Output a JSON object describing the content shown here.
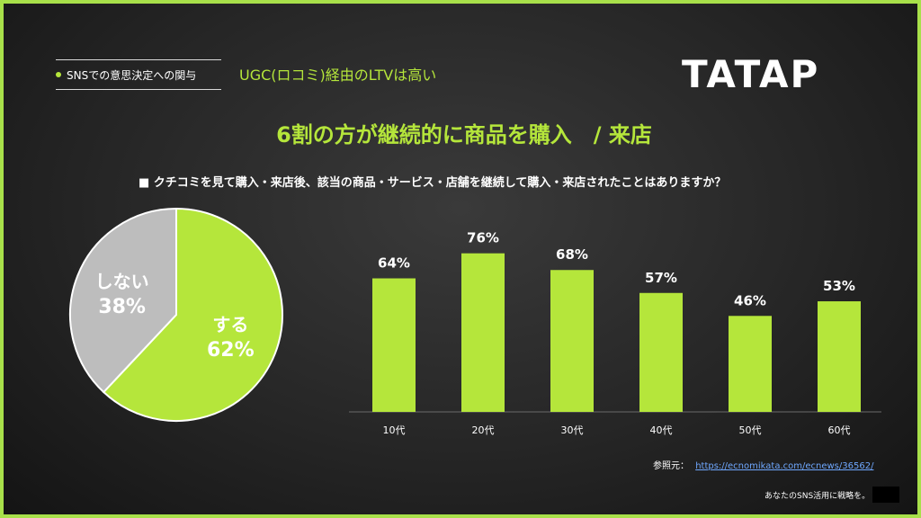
{
  "header": {
    "topic_label": "SNSでの意思決定への関与",
    "subtitle": "UGC(ロコミ)経由のLTVは高い",
    "logo": "TATAP"
  },
  "headline": "6割の方が継続的に商品を購入　/ 来店",
  "question": "■ クチコミを見て購入・来店後、該当の商品・サービス・店舗を継続して購入・来店されたことはありますか？",
  "chart_data": [
    {
      "type": "pie",
      "slices": [
        {
          "label": "する",
          "value": 62,
          "value_label": "62%",
          "color": "#b5e63b"
        },
        {
          "label": "しない",
          "value": 38,
          "value_label": "38%",
          "color": "#bdbdbd"
        }
      ]
    },
    {
      "type": "bar",
      "categories": [
        "10代",
        "20代",
        "30代",
        "40代",
        "50代",
        "60代"
      ],
      "values": [
        64,
        76,
        68,
        57,
        46,
        53
      ],
      "value_labels": [
        "64%",
        "76%",
        "68%",
        "57%",
        "46%",
        "53%"
      ],
      "color": "#b5e63b",
      "ylim": [
        0,
        100
      ]
    }
  ],
  "source": {
    "label": "参照元：",
    "url_text": "https://ecnomikata.com/ecnews/36562/"
  },
  "footer": {
    "tagline": "あなたのSNS活用に戦略を。"
  }
}
